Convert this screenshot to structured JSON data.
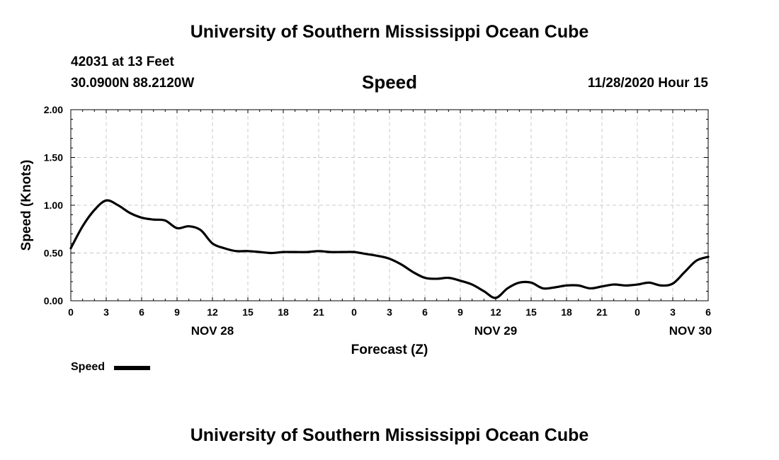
{
  "header": {
    "title_top": "University of Southern Mississippi Ocean Cube",
    "station": "42031 at 13 Feet",
    "coordinates": "30.0900N 88.2120W",
    "variable": "Speed",
    "datetime": "11/28/2020 Hour 15"
  },
  "footer": {
    "title_bottom": "University of Southern Mississippi Ocean Cube"
  },
  "legend": {
    "label": "Speed"
  },
  "chart_data": {
    "type": "line",
    "title": "Speed",
    "xlabel": "Forecast (Z)",
    "ylabel": "Speed (Knots)",
    "xlim": [
      0,
      54
    ],
    "ylim": [
      0,
      2
    ],
    "grid": true,
    "x_ticks": [
      {
        "x": 0,
        "label": "0"
      },
      {
        "x": 3,
        "label": "3"
      },
      {
        "x": 6,
        "label": "6"
      },
      {
        "x": 9,
        "label": "9"
      },
      {
        "x": 12,
        "label": "12"
      },
      {
        "x": 15,
        "label": "15"
      },
      {
        "x": 18,
        "label": "18"
      },
      {
        "x": 21,
        "label": "21"
      },
      {
        "x": 24,
        "label": "0"
      },
      {
        "x": 27,
        "label": "3"
      },
      {
        "x": 30,
        "label": "6"
      },
      {
        "x": 33,
        "label": "9"
      },
      {
        "x": 36,
        "label": "12"
      },
      {
        "x": 39,
        "label": "15"
      },
      {
        "x": 42,
        "label": "18"
      },
      {
        "x": 45,
        "label": "21"
      },
      {
        "x": 48,
        "label": "0"
      },
      {
        "x": 51,
        "label": "3"
      },
      {
        "x": 54,
        "label": "6"
      }
    ],
    "y_ticks": [
      {
        "y": 0,
        "label": "0.00"
      },
      {
        "y": 0.5,
        "label": "0.50"
      },
      {
        "y": 1.0,
        "label": "1.00"
      },
      {
        "y": 1.5,
        "label": "1.50"
      },
      {
        "y": 2.0,
        "label": "2.00"
      }
    ],
    "date_labels": [
      {
        "x": 12,
        "label": "NOV 28"
      },
      {
        "x": 36,
        "label": "NOV 29"
      },
      {
        "x": 52.5,
        "label": "NOV 30"
      }
    ],
    "series": [
      {
        "name": "Speed",
        "color": "#000000",
        "x": [
          0,
          1,
          2,
          3,
          4,
          5,
          6,
          7,
          8,
          9,
          10,
          11,
          12,
          13,
          14,
          15,
          16,
          17,
          18,
          19,
          20,
          21,
          22,
          23,
          24,
          25,
          26,
          27,
          28,
          29,
          30,
          31,
          32,
          33,
          34,
          35,
          36,
          37,
          38,
          39,
          40,
          41,
          42,
          43,
          44,
          45,
          46,
          47,
          48,
          49,
          50,
          51,
          52,
          53,
          54
        ],
        "values": [
          0.55,
          0.78,
          0.95,
          1.05,
          1.0,
          0.92,
          0.87,
          0.85,
          0.84,
          0.76,
          0.78,
          0.74,
          0.6,
          0.55,
          0.52,
          0.52,
          0.51,
          0.5,
          0.51,
          0.51,
          0.51,
          0.52,
          0.51,
          0.51,
          0.51,
          0.49,
          0.47,
          0.44,
          0.38,
          0.3,
          0.24,
          0.23,
          0.24,
          0.21,
          0.17,
          0.1,
          0.03,
          0.13,
          0.19,
          0.19,
          0.13,
          0.14,
          0.16,
          0.16,
          0.13,
          0.15,
          0.17,
          0.16,
          0.17,
          0.19,
          0.16,
          0.18,
          0.3,
          0.42,
          0.46
        ]
      }
    ]
  }
}
